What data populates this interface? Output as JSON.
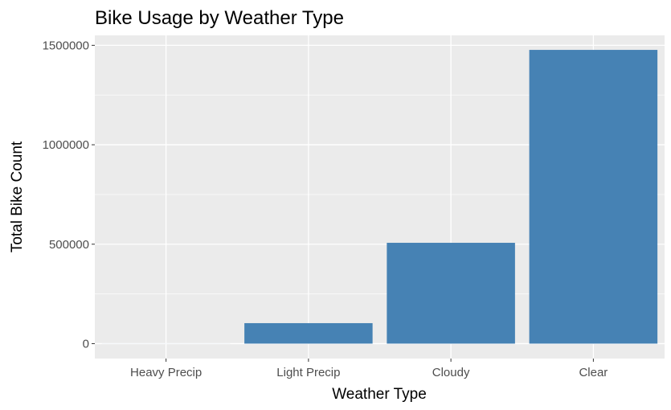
{
  "chart_data": {
    "type": "bar",
    "title": "Bike Usage by Weather Type",
    "xlabel": "Weather Type",
    "ylabel": "Total Bike Count",
    "categories": [
      "Heavy Precip",
      "Light Precip",
      "Cloudy",
      "Clear"
    ],
    "values": [
      200,
      103000,
      507000,
      1477000
    ],
    "ylim": [
      -75000,
      1550000
    ],
    "yticks": [
      0,
      500000,
      1000000,
      1500000
    ],
    "ytick_labels": [
      "0",
      "500000",
      "1000000",
      "1500000"
    ],
    "grid": true,
    "legend": "none",
    "colors": {
      "bar": "#4682B4",
      "panel": "#EBEBEB",
      "grid": "#FFFFFF",
      "tick": "#333333"
    }
  }
}
